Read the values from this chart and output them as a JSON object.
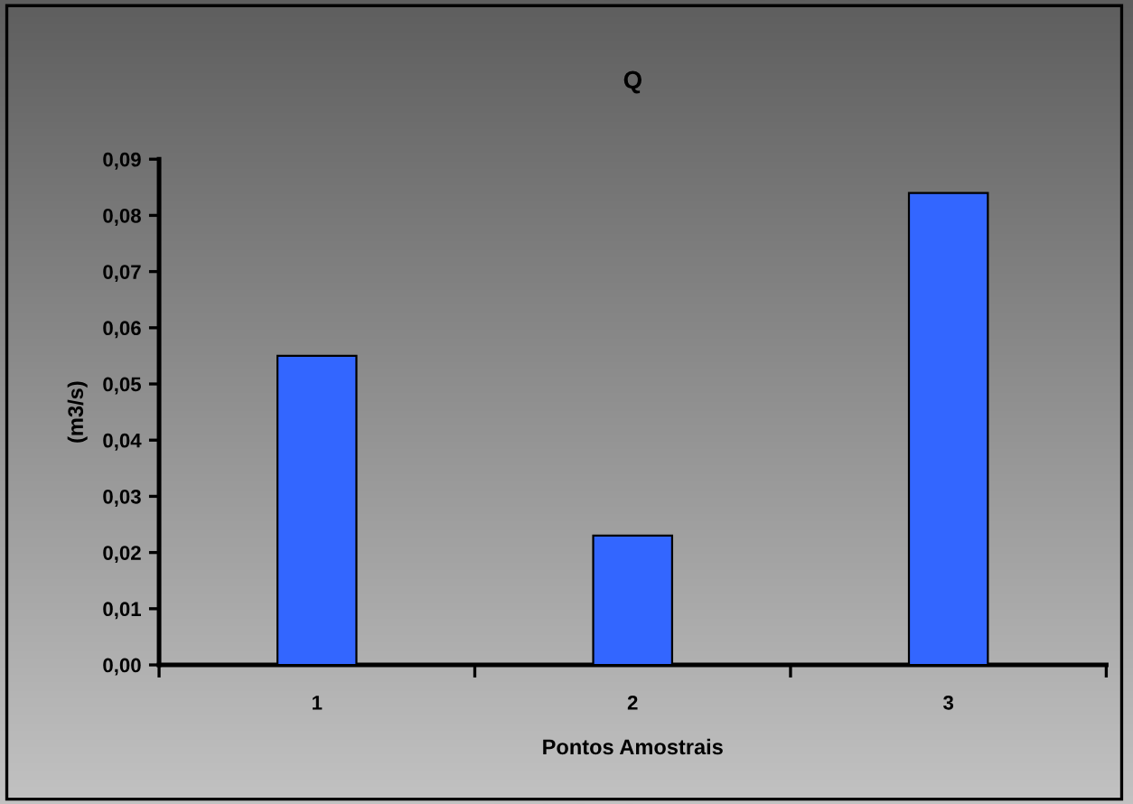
{
  "chart_data": {
    "type": "bar",
    "title": "Q",
    "xlabel": "Pontos Amostrais",
    "ylabel": "(m3/s)",
    "categories": [
      "1",
      "2",
      "3"
    ],
    "series": [
      {
        "color": "#3366ff",
        "values": [
          0.055,
          0.023,
          0.084
        ]
      }
    ],
    "ylim": [
      0,
      0.09
    ],
    "yticks": [
      {
        "value": 0,
        "label": "0,00"
      },
      {
        "value": 0.01,
        "label": "0,01"
      },
      {
        "value": 0.02,
        "label": "0,02"
      },
      {
        "value": 0.03,
        "label": "0,03"
      },
      {
        "value": 0.04,
        "label": "0,04"
      },
      {
        "value": 0.05,
        "label": "0,05"
      },
      {
        "value": 0.06,
        "label": "0,06"
      },
      {
        "value": 0.07,
        "label": "0,07"
      },
      {
        "value": 0.08,
        "label": "0,08"
      },
      {
        "value": 0.09,
        "label": "0,09"
      }
    ]
  }
}
